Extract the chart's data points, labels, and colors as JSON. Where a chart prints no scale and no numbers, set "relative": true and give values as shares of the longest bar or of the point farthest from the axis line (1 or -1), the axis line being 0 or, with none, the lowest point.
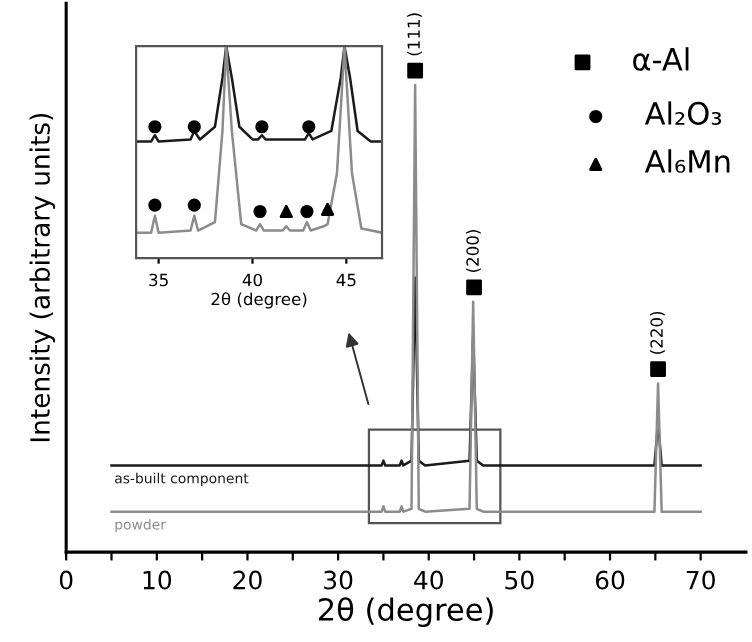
{
  "chart_data": [
    {
      "type": "line",
      "relative": true,
      "xlabel": "2θ (degree)",
      "ylabel": "Intensity (arbitrary units)",
      "xlim": [
        0,
        75
      ],
      "xticks": [
        0,
        {
          "value": 5,
          "label": null
        },
        10,
        {
          "value": 15,
          "label": null
        },
        20,
        {
          "value": 25,
          "label": null
        },
        30,
        {
          "value": 35,
          "label": null
        },
        40,
        {
          "value": 45,
          "label": null
        },
        50,
        {
          "value": 55,
          "label": null
        },
        60,
        {
          "value": 65,
          "label": null
        },
        70
      ],
      "tick_labels": "x",
      "grid": false,
      "legend": "top right",
      "series": [
        {
          "name": "as-built component",
          "color": "#1a1a1a",
          "x": [
            5,
            34.8,
            35,
            35.2,
            36.8,
            37,
            37.2,
            38.1,
            38.5,
            38.9,
            39.6,
            44.5,
            44.9,
            45.3,
            46,
            64.9,
            65.3,
            65.7,
            70
          ],
          "values": [
            0.18,
            0.18,
            0.19,
            0.18,
            0.18,
            0.19,
            0.18,
            0.19,
            0.57,
            0.19,
            0.18,
            0.19,
            0.45,
            0.19,
            0.18,
            0.18,
            0.27,
            0.18,
            0.18
          ]
        },
        {
          "name": "powder",
          "color": "#8c8c8c",
          "x": [
            5,
            34.8,
            35,
            35.2,
            36.8,
            37,
            37.2,
            38.1,
            38.5,
            38.9,
            39.6,
            44.5,
            44.9,
            45.3,
            46,
            64.9,
            65.3,
            65.7,
            70
          ],
          "values": [
            0.084,
            0.084,
            0.095,
            0.084,
            0.084,
            0.095,
            0.084,
            0.09,
            0.97,
            0.09,
            0.084,
            0.09,
            0.52,
            0.09,
            0.084,
            0.084,
            0.35,
            0.084,
            0.084
          ]
        },
        {
          "name": "α-Al",
          "type": "scatter",
          "marker": "square",
          "color": "#000000",
          "x": [
            38.5,
            45.0,
            65.3
          ],
          "values": [
            1.0,
            0.55,
            0.38
          ]
        }
      ],
      "annotations": [
        {
          "text": "(111)",
          "x": 38.5,
          "y": 1.0
        },
        {
          "text": "(200)",
          "x": 45.0,
          "y": 0.55
        },
        {
          "text": "(220)",
          "x": 65.3,
          "y": 0.38
        }
      ]
    },
    {
      "type": "line",
      "relative": true,
      "xlabel": "2θ (degree)",
      "xlim": [
        33.8,
        46.9
      ],
      "xticks": [
        35,
        40,
        45
      ],
      "tick_labels": "x",
      "grid": false,
      "legend": "right",
      "series": [
        {
          "color": "#1a1a1a",
          "x": [
            33.8,
            34.6,
            34.8,
            35.0,
            36.7,
            36.9,
            37.2,
            38.0,
            38.4,
            38.6,
            38.9,
            39.3,
            40.0,
            40.3,
            40.5,
            40.7,
            42.8,
            43.0,
            43.2,
            44.2,
            44.7,
            44.9,
            45.2,
            45.6,
            46.3,
            46.9
          ],
          "values": [
            0.55,
            0.55,
            0.58,
            0.55,
            0.56,
            0.6,
            0.56,
            0.62,
            0.85,
            1.0,
            0.85,
            0.62,
            0.56,
            0.56,
            0.58,
            0.56,
            0.56,
            0.59,
            0.56,
            0.6,
            0.85,
            1.0,
            0.85,
            0.6,
            0.55,
            0.55
          ]
        },
        {
          "color": "#8c8c8c",
          "x": [
            33.8,
            34.6,
            34.8,
            35.0,
            36.7,
            36.9,
            37.1,
            38.0,
            38.4,
            38.6,
            38.9,
            39.4,
            40.2,
            40.4,
            40.6,
            41.6,
            41.8,
            42.0,
            42.7,
            42.9,
            43.1,
            43.8,
            44.0,
            44.5,
            44.9,
            45.3,
            45.8,
            46.9
          ],
          "values": [
            0.12,
            0.12,
            0.2,
            0.12,
            0.13,
            0.2,
            0.13,
            0.17,
            0.6,
            1.0,
            0.6,
            0.16,
            0.13,
            0.16,
            0.13,
            0.13,
            0.15,
            0.13,
            0.13,
            0.17,
            0.13,
            0.15,
            0.16,
            0.4,
            1.0,
            0.4,
            0.14,
            0.12
          ]
        },
        {
          "name": "Al₂O₃",
          "type": "scatter",
          "marker": "circle",
          "color": "#000000",
          "x": [
            34.8,
            36.9,
            40.5,
            43.0,
            34.8,
            36.9,
            40.4,
            42.9
          ],
          "values": [
            0.62,
            0.62,
            0.62,
            0.62,
            0.25,
            0.25,
            0.22,
            0.22
          ]
        },
        {
          "name": "Al₆Mn",
          "type": "scatter",
          "marker": "triangle",
          "color": "#000000",
          "x": [
            41.8,
            44.0
          ],
          "values": [
            0.22,
            0.23
          ]
        }
      ]
    }
  ]
}
